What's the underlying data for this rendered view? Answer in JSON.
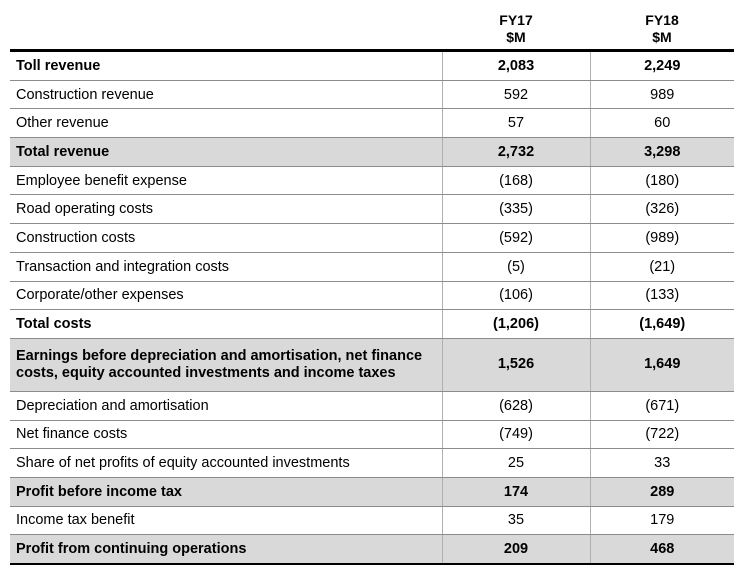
{
  "columns": [
    {
      "line1": "FY17",
      "line2": "$M"
    },
    {
      "line1": "FY18",
      "line2": "$M"
    }
  ],
  "rows": [
    {
      "label": "Toll revenue",
      "fy17": "2,083",
      "fy18": "2,249",
      "bold": true,
      "shaded": false
    },
    {
      "label": "Construction revenue",
      "fy17": "592",
      "fy18": "989",
      "bold": false,
      "shaded": false
    },
    {
      "label": "Other revenue",
      "fy17": "57",
      "fy18": "60",
      "bold": false,
      "shaded": false
    },
    {
      "label": "Total revenue",
      "fy17": "2,732",
      "fy18": "3,298",
      "bold": true,
      "shaded": true
    },
    {
      "label": "Employee benefit expense",
      "fy17": "(168)",
      "fy18": "(180)",
      "bold": false,
      "shaded": false
    },
    {
      "label": "Road operating costs",
      "fy17": "(335)",
      "fy18": "(326)",
      "bold": false,
      "shaded": false
    },
    {
      "label": "Construction costs",
      "fy17": "(592)",
      "fy18": "(989)",
      "bold": false,
      "shaded": false
    },
    {
      "label": "Transaction and integration costs",
      "fy17": "(5)",
      "fy18": "(21)",
      "bold": false,
      "shaded": false
    },
    {
      "label": "Corporate/other expenses",
      "fy17": "(106)",
      "fy18": "(133)",
      "bold": false,
      "shaded": false
    },
    {
      "label": "Total costs",
      "fy17": "(1,206)",
      "fy18": "(1,649)",
      "bold": true,
      "shaded": false
    },
    {
      "label": "Earnings before depreciation and amortisation, net finance costs, equity accounted investments and income taxes",
      "fy17": "1,526",
      "fy18": "1,649",
      "bold": true,
      "shaded": true,
      "tall": true
    },
    {
      "label": "Depreciation and amortisation",
      "fy17": "(628)",
      "fy18": "(671)",
      "bold": false,
      "shaded": false
    },
    {
      "label": "Net finance costs",
      "fy17": "(749)",
      "fy18": "(722)",
      "bold": false,
      "shaded": false
    },
    {
      "label": "Share of net profits of equity accounted investments",
      "fy17": "25",
      "fy18": "33",
      "bold": false,
      "shaded": false
    },
    {
      "label": "Profit before income tax",
      "fy17": "174",
      "fy18": "289",
      "bold": true,
      "shaded": true
    },
    {
      "label": "Income tax benefit",
      "fy17": "35",
      "fy18": "179",
      "bold": false,
      "shaded": false
    },
    {
      "label": "Profit from continuing operations",
      "fy17": "209",
      "fy18": "468",
      "bold": true,
      "shaded": true
    }
  ]
}
